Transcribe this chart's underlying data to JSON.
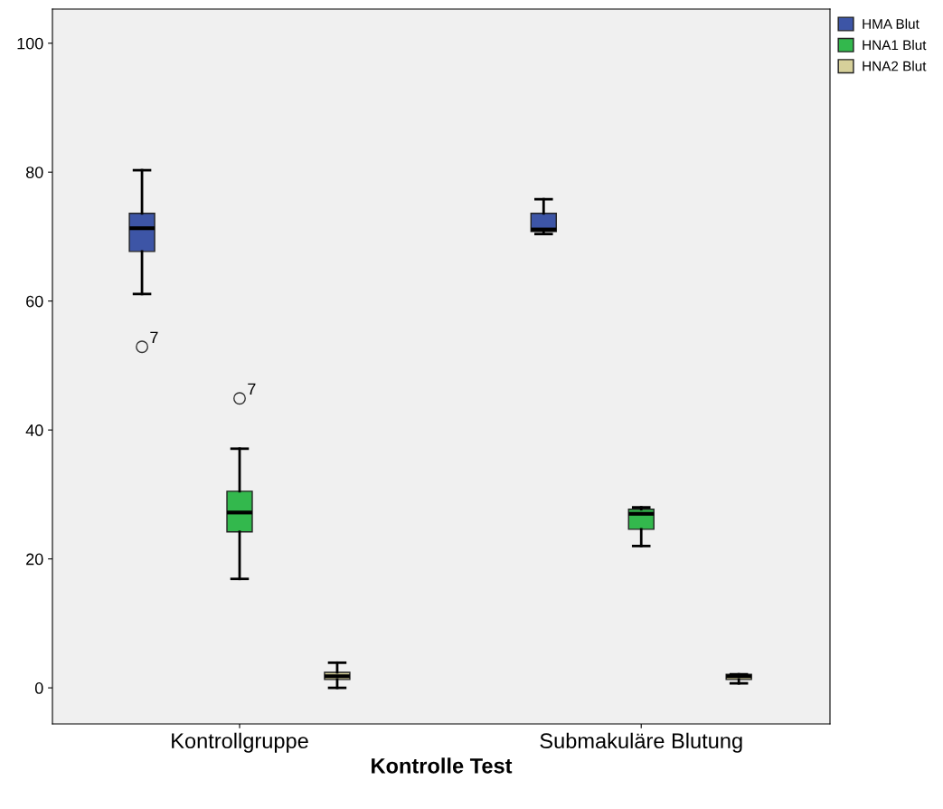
{
  "chart_data": {
    "type": "box",
    "xlabel": "Kontrolle Test",
    "categories": [
      "Kontrollgruppe",
      "Submakuläre Blutung"
    ],
    "ylim": [
      -5.6,
      105.3
    ],
    "yticks": [
      0,
      20,
      40,
      60,
      80,
      100
    ],
    "grid": false,
    "legend": "top right",
    "series": [
      {
        "name": "HMA Blut",
        "color": "#3d55a6",
        "boxes": [
          {
            "low": 61.1,
            "q1": 67.7,
            "median": 71.3,
            "q3": 73.6,
            "high": 80.3,
            "outliers": [
              52.9
            ]
          },
          {
            "low": 70.4,
            "q1": 70.8,
            "median": 71.1,
            "q3": 73.6,
            "high": 75.8
          }
        ]
      },
      {
        "name": "HNA1 Blut",
        "color": "#33b84d",
        "boxes": [
          {
            "low": 16.9,
            "q1": 24.2,
            "median": 27.2,
            "q3": 30.5,
            "high": 37.1,
            "outliers": [
              44.9
            ]
          },
          {
            "low": 22.0,
            "q1": 24.6,
            "median": 27.0,
            "q3": 27.7,
            "high": 28.0
          }
        ]
      },
      {
        "name": "HNA2 Blut",
        "color": "#d6d09a",
        "boxes": [
          {
            "low": 0.0,
            "q1": 1.3,
            "median": 1.8,
            "q3": 2.4,
            "high": 3.9
          },
          {
            "low": 0.7,
            "q1": 1.3,
            "median": 1.8,
            "q3": 2.1,
            "high": 2.1
          }
        ]
      }
    ],
    "annotations": [
      "7",
      "7"
    ]
  }
}
